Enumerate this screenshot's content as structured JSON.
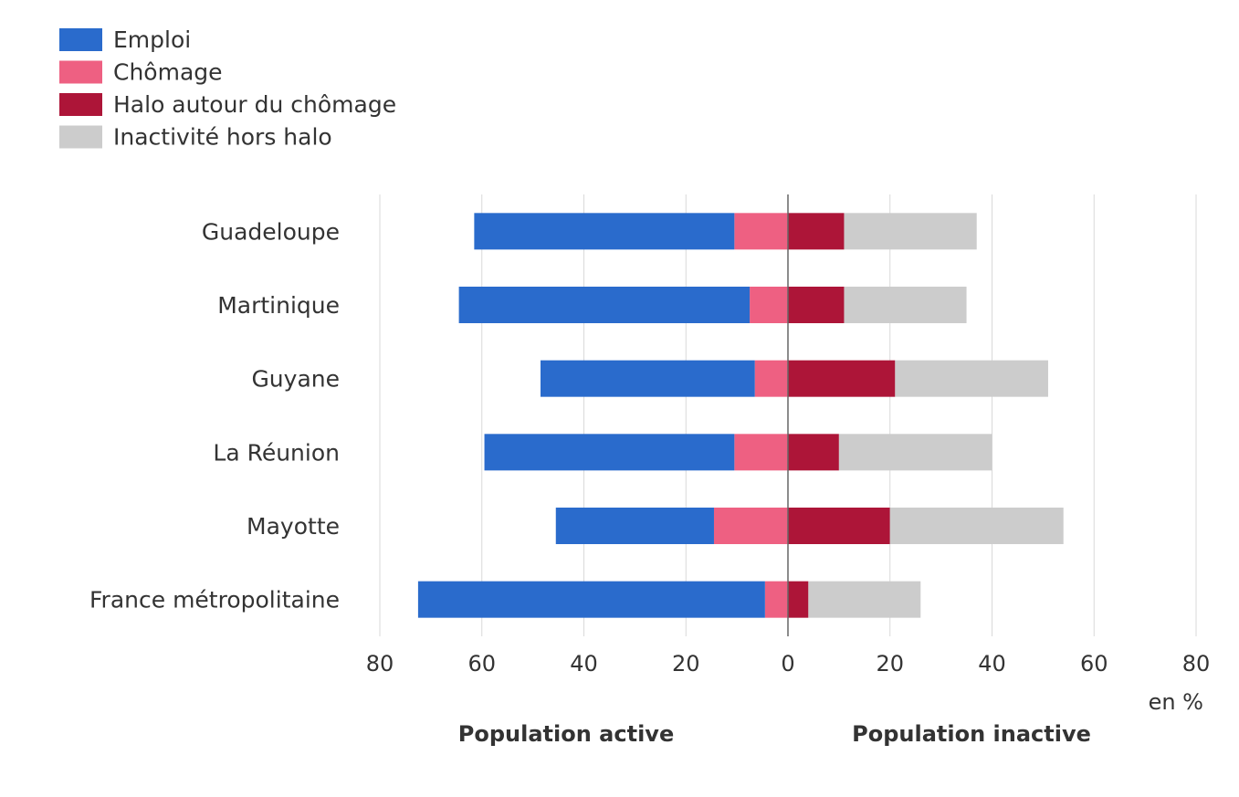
{
  "chart_data": {
    "type": "bar",
    "orientation": "horizontal-diverging",
    "categories": [
      "Guadeloupe",
      "Martinique",
      "Guyane",
      "La Réunion",
      "Mayotte",
      "France métropolitaine"
    ],
    "series": [
      {
        "name": "Emploi",
        "side": "active",
        "color": "#2a6bcc",
        "values": [
          51,
          57,
          42,
          49,
          31,
          68
        ]
      },
      {
        "name": "Chômage",
        "side": "active",
        "color": "#ee6082",
        "values": [
          10.5,
          7.5,
          6.5,
          10.5,
          14.5,
          4.5
        ]
      },
      {
        "name": "Halo autour du chômage",
        "side": "inactive",
        "color": "#ad1538",
        "values": [
          11,
          11,
          21,
          10,
          20,
          4
        ]
      },
      {
        "name": "Inactivité hors halo",
        "side": "inactive",
        "color": "#cccccc",
        "values": [
          26,
          24,
          30,
          30,
          34,
          22
        ]
      }
    ],
    "xlim": [
      -80,
      80
    ],
    "xticks": [
      -80,
      -60,
      -40,
      -20,
      0,
      20,
      40,
      60,
      80
    ],
    "xtick_labels": [
      "80",
      "60",
      "40",
      "20",
      "0",
      "20",
      "40",
      "60",
      "80"
    ],
    "unit_label": "en %",
    "left_label": "Population active",
    "right_label": "Population inactive",
    "legend_position": "top-left",
    "grid": true
  }
}
